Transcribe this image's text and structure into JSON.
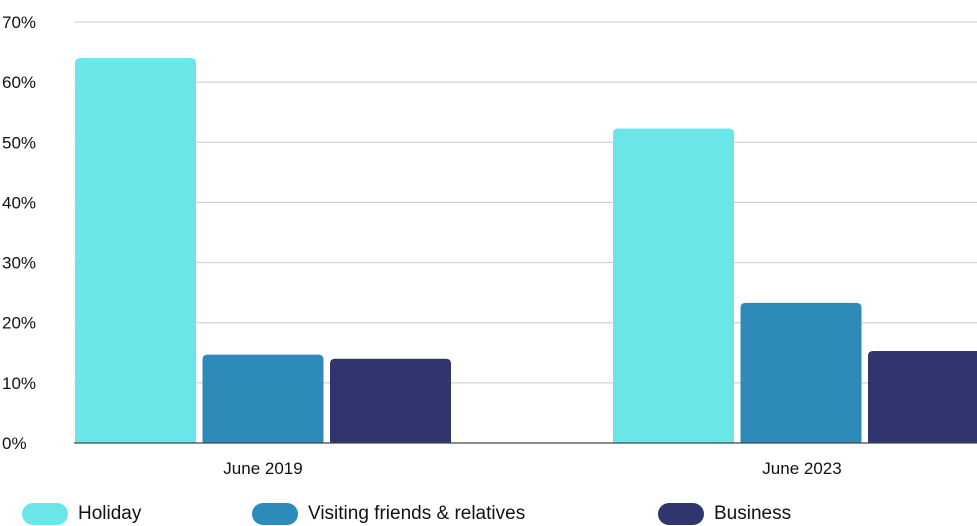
{
  "chart_data": {
    "type": "bar",
    "categories": [
      "June 2019",
      "June 2023"
    ],
    "series": [
      {
        "name": "Holiday",
        "values": [
          64,
          52.3
        ],
        "color": "#6ae5e8"
      },
      {
        "name": "Visiting friends & relatives",
        "values": [
          14.7,
          23.3
        ],
        "color": "#2e8ab8"
      },
      {
        "name": "Business",
        "values": [
          14,
          15.3
        ],
        "color": "#30366d"
      }
    ],
    "yticks": [
      "0%",
      "10%",
      "20%",
      "30%",
      "40%",
      "50%",
      "60%",
      "70%"
    ],
    "ylim": [
      0,
      70
    ],
    "unit": "%",
    "grid": true,
    "legend_position": "bottom"
  }
}
